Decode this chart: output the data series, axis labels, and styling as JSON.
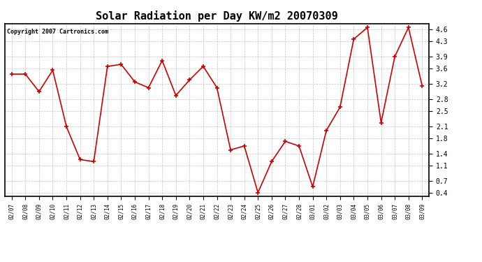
{
  "title": "Solar Radiation per Day KW/m2 20070309",
  "copyright": "Copyright 2007 Cartronics.com",
  "dates": [
    "02/07",
    "02/08",
    "02/09",
    "02/10",
    "02/11",
    "02/12",
    "02/13",
    "02/14",
    "02/15",
    "02/16",
    "02/17",
    "02/18",
    "02/19",
    "02/20",
    "02/21",
    "02/22",
    "02/23",
    "02/24",
    "02/25",
    "02/26",
    "02/27",
    "02/28",
    "03/01",
    "03/02",
    "03/03",
    "03/04",
    "03/05",
    "03/06",
    "03/07",
    "03/08",
    "03/09"
  ],
  "values": [
    3.45,
    3.45,
    3.0,
    3.55,
    2.1,
    1.25,
    1.2,
    3.65,
    3.7,
    3.25,
    3.1,
    3.8,
    2.9,
    3.3,
    3.65,
    3.1,
    1.5,
    1.6,
    0.4,
    1.2,
    1.72,
    1.6,
    0.55,
    2.0,
    2.6,
    4.35,
    4.65,
    2.2,
    3.9,
    4.65,
    3.15
  ],
  "line_color": "#cc0000",
  "marker_color": "#cc0000",
  "bg_color": "#ffffff",
  "plot_bg_color": "#ffffff",
  "grid_color": "#aaaaaa",
  "yticks": [
    0.4,
    0.7,
    1.1,
    1.4,
    1.8,
    2.1,
    2.5,
    2.8,
    3.2,
    3.6,
    3.9,
    4.3,
    4.6
  ],
  "ylim": [
    0.3,
    4.75
  ],
  "title_fontsize": 11,
  "copyright_fontsize": 6,
  "xtick_fontsize": 5.5,
  "ytick_fontsize": 7
}
